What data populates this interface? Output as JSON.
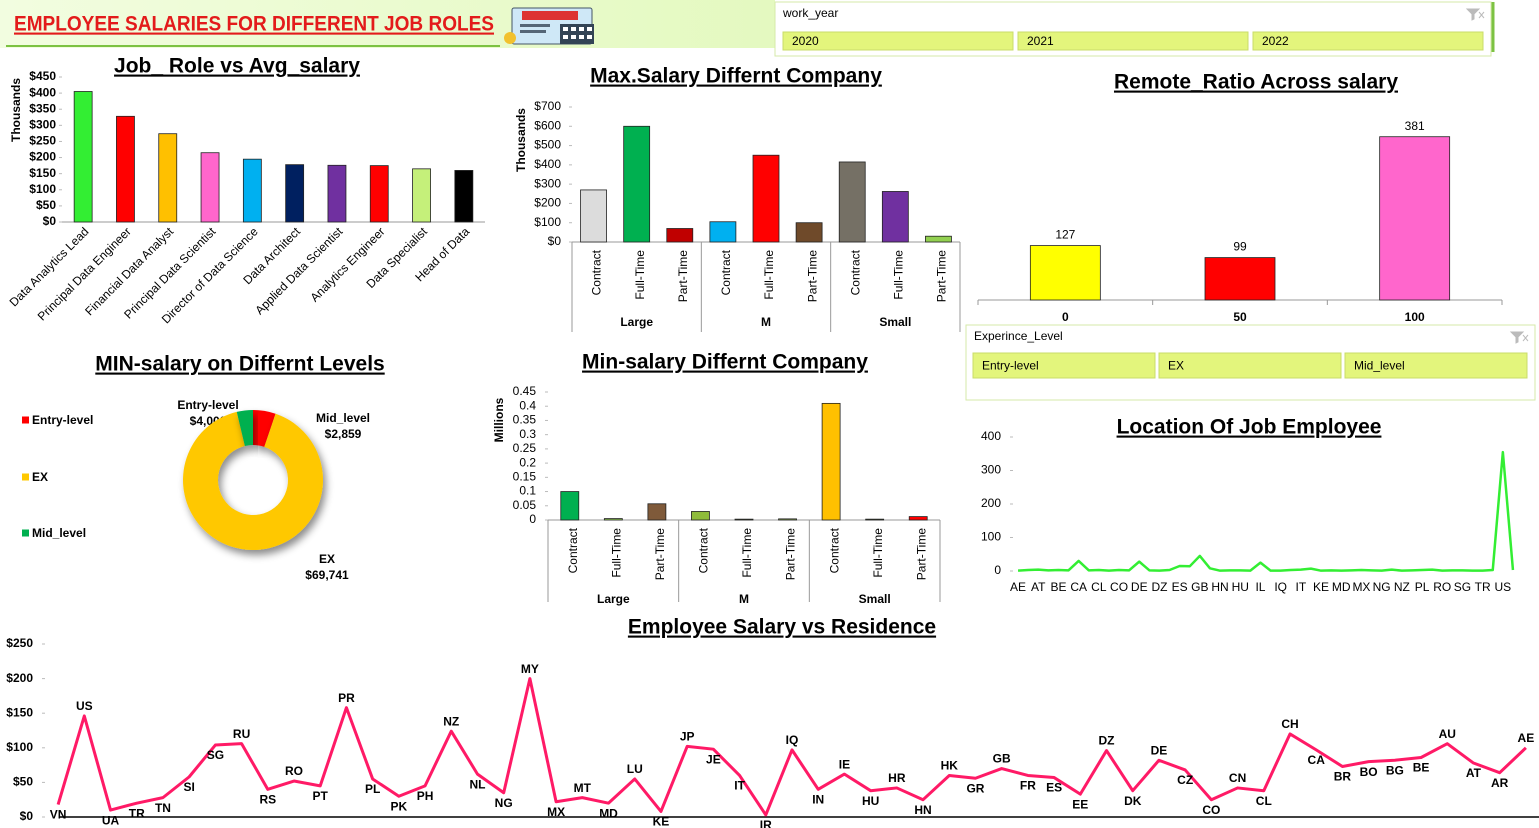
{
  "header": {
    "title": "EMPLOYEE SALARIES FOR DIFFERENT JOB ROLES"
  },
  "slicers": [
    {
      "title": "work_year",
      "items": [
        "2020",
        "2021",
        "2022"
      ]
    },
    {
      "title": "Experince_Level",
      "items": [
        "Entry-level",
        "EX",
        "Mid_level"
      ]
    }
  ],
  "chart_data": [
    {
      "type": "bar",
      "title": "Job_ Role vs Avg_salary",
      "ylabel": "Thousands",
      "categories": [
        "Data Analytics Lead",
        "Principal Data Engineer",
        "Financial Data Analyst",
        "Principal Data Scientist",
        "Director of Data Science",
        "Data Architect",
        "Applied Data Scientist",
        "Analytics Engineer",
        "Data Specialist",
        "Head of Data"
      ],
      "values": [
        405,
        328,
        274,
        215,
        195,
        178,
        176,
        175,
        165,
        160
      ],
      "colors": [
        "#33ee33",
        "#ff0000",
        "#ffc000",
        "#ff66cc",
        "#00b0f0",
        "#002060",
        "#7030a0",
        "#ff0000",
        "#c5f07a",
        "#000000"
      ],
      "ylim": [
        0,
        450
      ],
      "yticks": [
        {
          "value": 0,
          "label": "$0"
        },
        {
          "value": 50,
          "label": "$50"
        },
        {
          "value": 100,
          "label": "$100"
        },
        {
          "value": 150,
          "label": "$150"
        },
        {
          "value": 200,
          "label": "$200"
        },
        {
          "value": 250,
          "label": "$250"
        },
        {
          "value": 300,
          "label": "$300"
        },
        {
          "value": 350,
          "label": "$350"
        },
        {
          "value": 400,
          "label": "$400"
        },
        {
          "value": 450,
          "label": "$450"
        }
      ]
    },
    {
      "type": "bar",
      "title": "Max.Salary Differnt Company",
      "ylabel": "Thousands",
      "groups": [
        "Large",
        "M",
        "Small"
      ],
      "categories": [
        "Contract",
        "Full-Time",
        "Part-Time",
        "Contract",
        "Full-Time",
        "Part-Time",
        "Contract",
        "Full-Time",
        "Part-Time"
      ],
      "values": [
        270,
        600,
        70,
        105,
        450,
        100,
        415,
        262,
        30
      ],
      "colors": [
        "#dcdcdc",
        "#00b050",
        "#c00000",
        "#00b0f0",
        "#ff0000",
        "#6f4a2a",
        "#757065",
        "#7030a0",
        "#92d050"
      ],
      "ylim": [
        0,
        700
      ],
      "yticks": [
        {
          "value": 0,
          "label": "$0"
        },
        {
          "value": 100,
          "label": "$100"
        },
        {
          "value": 200,
          "label": "$200"
        },
        {
          "value": 300,
          "label": "$300"
        },
        {
          "value": 400,
          "label": "$400"
        },
        {
          "value": 500,
          "label": "$500"
        },
        {
          "value": 600,
          "label": "$600"
        },
        {
          "value": 700,
          "label": "$700"
        }
      ]
    },
    {
      "type": "bar",
      "title": "Remote_Ratio Across salary",
      "categories": [
        "0",
        "50",
        "100"
      ],
      "values": [
        127,
        99,
        381
      ],
      "colors": [
        "#ffff00",
        "#ff0000",
        "#ff66cc"
      ],
      "data_labels": true,
      "ylim": [
        0,
        420
      ]
    },
    {
      "type": "donut",
      "title": "MIN-salary on Differnt Levels",
      "categories": [
        "Entry-level",
        "EX",
        "Mid_level"
      ],
      "values": [
        4000,
        69741,
        2859
      ],
      "value_labels": [
        "$4,000",
        "$69,741",
        "$2,859"
      ],
      "colors": [
        "#ff0000",
        "#ffc800",
        "#00b050"
      ],
      "legend": "left"
    },
    {
      "type": "bar",
      "title": "Min-salary Differnt Company",
      "ylabel": "Millions",
      "groups": [
        "Large",
        "M",
        "Small"
      ],
      "categories": [
        "Contract",
        "Full-Time",
        "Part-Time",
        "Contract",
        "Full-Time",
        "Part-Time",
        "Contract",
        "Full-Time",
        "Part-Time"
      ],
      "values": [
        0.1,
        0.005,
        0.057,
        0.03,
        0.003,
        0.004,
        0.41,
        0.003,
        0.012
      ],
      "colors": [
        "#00b050",
        "#92d050",
        "#7f5a3a",
        "#8fbc3a",
        "#9bbb59",
        "#9bbb59",
        "#ffc000",
        "#92d050",
        "#ff0000"
      ],
      "ylim": [
        0,
        0.45
      ],
      "yticks": [
        0,
        0.05,
        0.1,
        0.15,
        0.2,
        0.25,
        0.3,
        0.35,
        0.4,
        0.45
      ]
    },
    {
      "type": "line",
      "title": "Location Of Job  Employee",
      "color": "#33ee33",
      "categories": [
        "AE",
        null,
        "AT",
        null,
        "BE",
        null,
        "CA",
        null,
        "CL",
        null,
        "CO",
        null,
        "DE",
        null,
        "DZ",
        null,
        "ES",
        null,
        "GB",
        null,
        "HN",
        null,
        "HU",
        null,
        "IL",
        null,
        "IQ",
        null,
        "IT",
        null,
        "KE",
        null,
        "MD",
        null,
        "MX",
        null,
        "NG",
        null,
        "NZ",
        null,
        "PL",
        null,
        "RO",
        null,
        "SG",
        null,
        "TR",
        null,
        "US",
        null
      ],
      "values": [
        1,
        3,
        4,
        2,
        3,
        2,
        30,
        2,
        3,
        1,
        3,
        2,
        28,
        2,
        1,
        3,
        15,
        14,
        45,
        8,
        1,
        2,
        2,
        1,
        25,
        1,
        1,
        3,
        4,
        7,
        1,
        2,
        1,
        2,
        3,
        2,
        1,
        4,
        1,
        2,
        3,
        4,
        1,
        2,
        2,
        1,
        1,
        3,
        355,
        3
      ],
      "ylim": [
        0,
        400
      ],
      "yticks": [
        0,
        100,
        200,
        300,
        400
      ]
    },
    {
      "type": "line",
      "title": "Employee Salary vs Residence",
      "color": "#ff1a66",
      "category_labels": "points",
      "categories": [
        "VN",
        "US",
        "UA",
        "TR",
        "TN",
        "SI",
        "SG",
        "RU",
        "RS",
        "RO",
        "PT",
        "PR",
        "PL",
        "PK",
        "PH",
        "NZ",
        "NL",
        "NG",
        "MY",
        "MX",
        "MT",
        "MD",
        "LU",
        "KE",
        "JP",
        "JE",
        "IT",
        "IR",
        "IQ",
        "IN",
        "IE",
        "HU",
        "HR",
        "HN",
        "HK",
        "GR",
        "GB",
        "FR",
        "ES",
        "EE",
        "DZ",
        "DK",
        "DE",
        "CZ",
        "CO",
        "CN",
        "CL",
        "CH",
        "CA",
        "BR",
        "BO",
        "BG",
        "BE",
        "AU",
        "AT",
        "AR",
        "AE"
      ],
      "values": [
        18,
        146,
        10,
        20,
        28,
        58,
        104,
        106,
        40,
        52,
        45,
        158,
        55,
        30,
        45,
        124,
        62,
        35,
        200,
        22,
        28,
        20,
        55,
        8,
        102,
        98,
        60,
        3,
        97,
        40,
        62,
        38,
        42,
        25,
        60,
        56,
        70,
        60,
        57,
        33,
        96,
        38,
        82,
        68,
        25,
        42,
        38,
        120,
        97,
        73,
        80,
        82,
        86,
        106,
        78,
        64,
        100
      ],
      "ylim": [
        0,
        250
      ],
      "yticks": [
        {
          "value": 0,
          "label": "$0"
        },
        {
          "value": 50,
          "label": "$50"
        },
        {
          "value": 100,
          "label": "$100"
        },
        {
          "value": 150,
          "label": "$150"
        },
        {
          "value": 200,
          "label": "$200"
        },
        {
          "value": 250,
          "label": "$250"
        }
      ]
    }
  ]
}
